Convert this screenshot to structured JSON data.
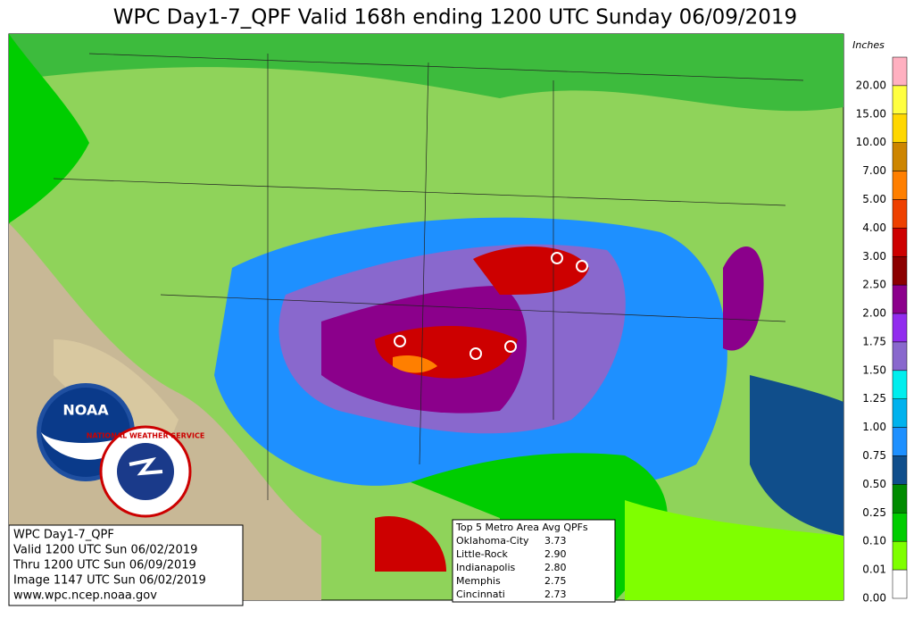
{
  "title": "WPC Day1-7_QPF Valid 168h ending 1200 UTC Sunday 06/09/2019",
  "legend": {
    "unit": "Inches",
    "labels": [
      "20.00",
      "15.00",
      "10.00",
      "7.00",
      "5.00",
      "4.00",
      "3.00",
      "2.50",
      "2.00",
      "1.75",
      "1.50",
      "1.25",
      "1.00",
      "0.75",
      "0.50",
      "0.25",
      "0.10",
      "0.01",
      "0.00"
    ],
    "colors": [
      "#ffb0c0",
      "#ffff40",
      "#ffd700",
      "#cd8500",
      "#ff7f00",
      "#ee4000",
      "#cd0000",
      "#8b0000",
      "#8b008b",
      "#912cee",
      "#8968cd",
      "#00eeee",
      "#00b2ee",
      "#1e90ff",
      "#104e8b",
      "#008b00",
      "#00cd00",
      "#7fff00",
      "#ffffff"
    ]
  },
  "logos": {
    "noaa": "NOAA",
    "nws": "NATIONAL WEATHER SERVICE"
  },
  "info_box": [
    "WPC Day1-7_QPF",
    "Valid 1200 UTC Sun 06/02/2019",
    "Thru 1200 UTC Sun 06/09/2019",
    "Image 1147 UTC Sun 06/02/2019",
    "www.wpc.ncep.noaa.gov"
  ],
  "metro_box": {
    "title": "Top 5 Metro Area Avg QPFs",
    "rows": [
      {
        "name": "Oklahoma-City",
        "value": "3.73"
      },
      {
        "name": "Little-Rock",
        "value": "2.90"
      },
      {
        "name": "Indianapolis",
        "value": "2.80"
      },
      {
        "name": "Memphis",
        "value": "2.75"
      },
      {
        "name": "Cincinnati",
        "value": "2.73"
      }
    ]
  }
}
